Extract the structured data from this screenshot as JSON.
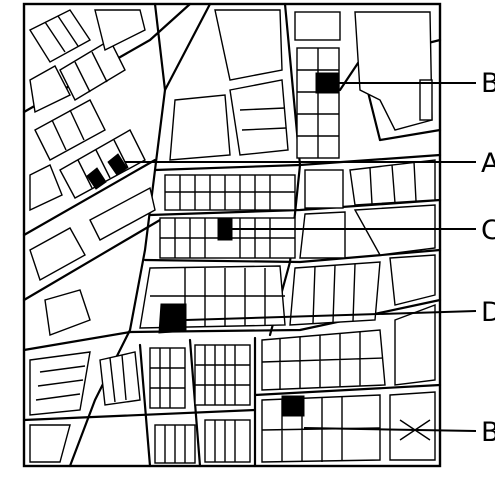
{
  "map": {
    "labels": [
      {
        "id": "B-top",
        "text": "B"
      },
      {
        "id": "A",
        "text": "A"
      },
      {
        "id": "C",
        "text": "C"
      },
      {
        "id": "D",
        "text": "D"
      },
      {
        "id": "B-bottom",
        "text": "B"
      }
    ],
    "colors": {
      "ink": "#000000",
      "paper": "#ffffff",
      "highlight": "#000000"
    }
  }
}
